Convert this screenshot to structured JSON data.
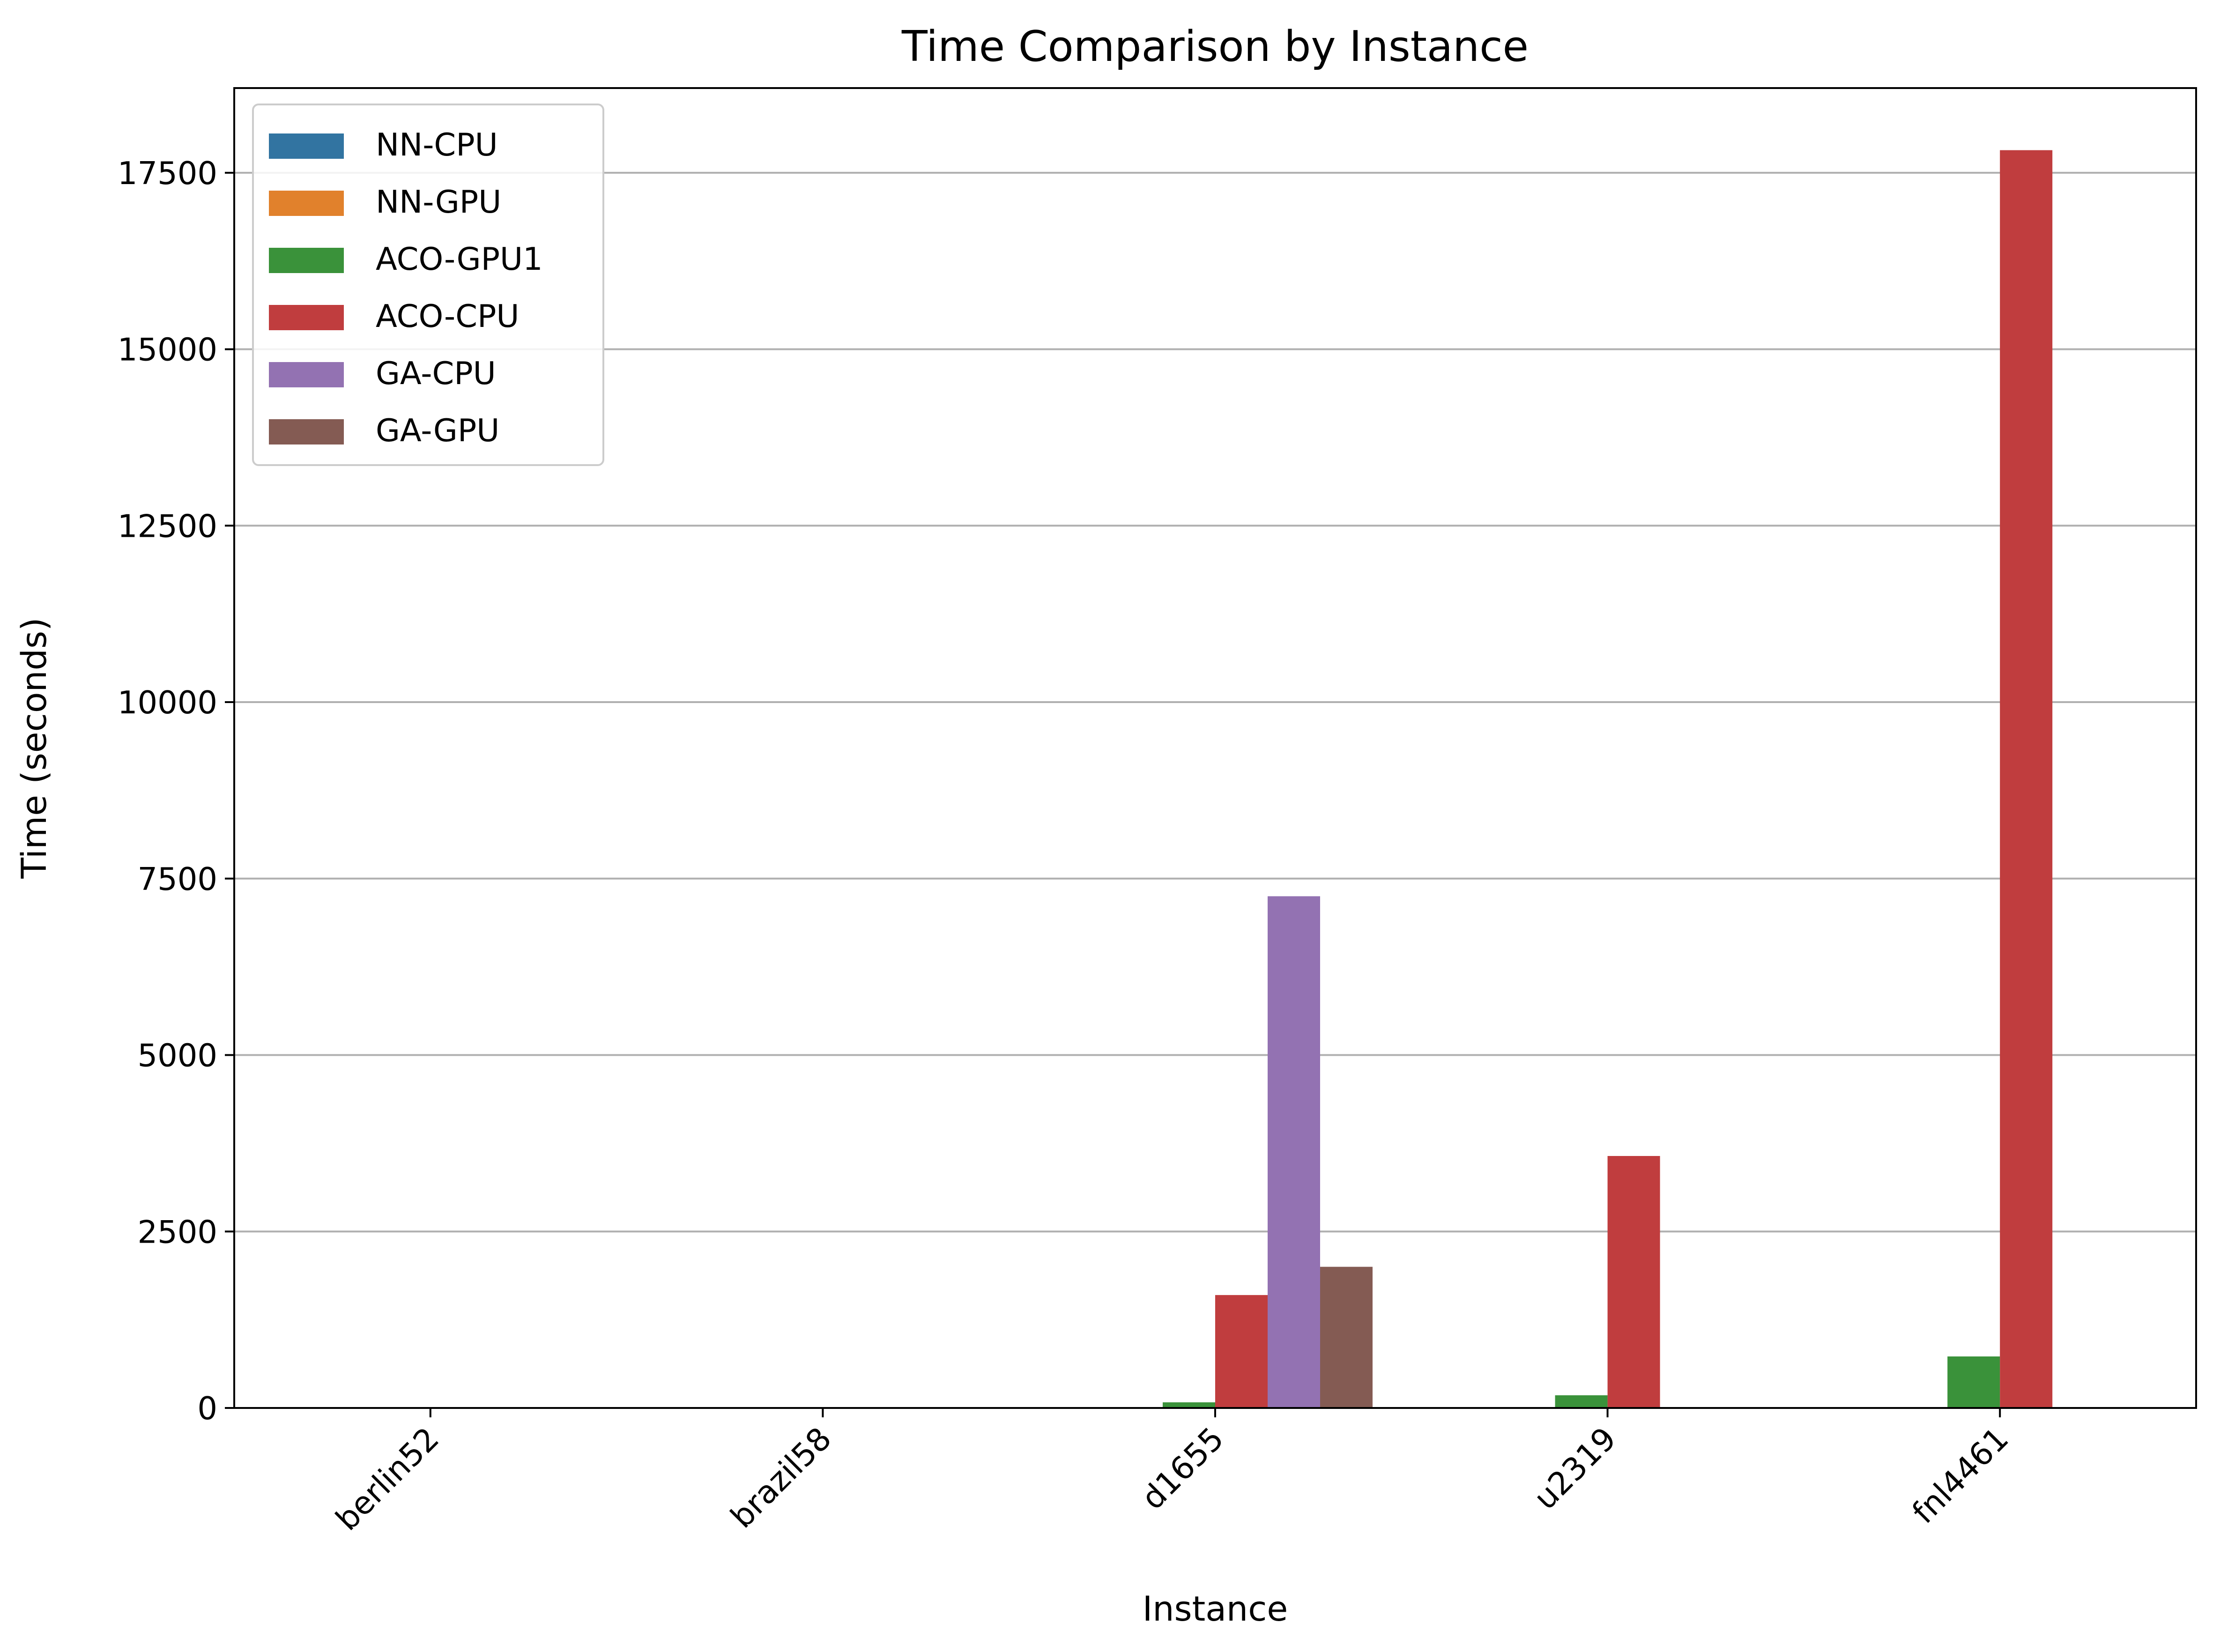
{
  "chart_data": {
    "type": "bar",
    "title": "Time Comparison by Instance",
    "xlabel": "Instance",
    "ylabel": "Time (seconds)",
    "categories": [
      "berlin52",
      "brazil58",
      "d1655",
      "u2319",
      "fnl4461"
    ],
    "ylim": [
      0,
      18700
    ],
    "yticks": [
      0,
      2500,
      5000,
      7500,
      10000,
      12500,
      15000,
      17500
    ],
    "grid": "y",
    "legend_position": "top-left",
    "series": [
      {
        "name": "NN-CPU",
        "color": "#3274a1",
        "values": [
          0.01,
          0.01,
          1,
          2,
          5
        ]
      },
      {
        "name": "NN-GPU",
        "color": "#e1812c",
        "values": [
          0.5,
          0.5,
          2,
          3,
          5
        ]
      },
      {
        "name": "ACO-GPU1",
        "color": "#3a923a",
        "values": [
          1,
          1,
          80,
          180,
          730
        ]
      },
      {
        "name": "ACO-CPU",
        "color": "#c03d3e",
        "values": [
          2,
          2,
          1600,
          3570,
          17820
        ]
      },
      {
        "name": "GA-CPU",
        "color": "#9372b2",
        "values": [
          2,
          2,
          7250,
          0,
          0
        ]
      },
      {
        "name": "GA-GPU",
        "color": "#845b53",
        "values": [
          1,
          1,
          2000,
          0,
          0
        ]
      }
    ]
  }
}
